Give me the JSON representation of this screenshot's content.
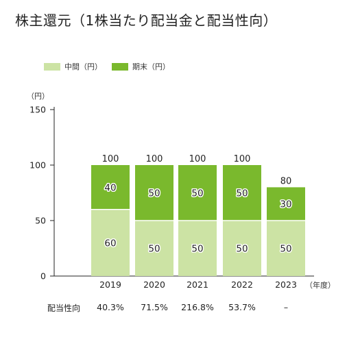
{
  "title": "株主還元（1株当たり配当金と配当性向）",
  "colors": {
    "interim": "#cce3a4",
    "year_end": "#7ab92d",
    "axis": "#222222"
  },
  "chart_data": {
    "type": "bar",
    "stacked": true,
    "categories": [
      "2019",
      "2020",
      "2021",
      "2022",
      "2023"
    ],
    "series": [
      {
        "name": "中間（円）",
        "values": [
          60,
          50,
          50,
          50,
          50
        ]
      },
      {
        "name": "期末（円）",
        "values": [
          40,
          50,
          50,
          50,
          30
        ]
      }
    ],
    "totals": [
      100,
      100,
      100,
      100,
      80
    ],
    "ylabel": "（円）",
    "xlabel": "（年度）",
    "ylim": [
      0,
      150
    ],
    "yticks": [
      0,
      50,
      100,
      150
    ],
    "grid": false,
    "legend_position": "top-left"
  },
  "payout": {
    "label": "配当性向",
    "values": [
      "40.3%",
      "71.5%",
      "216.8%",
      "53.7%",
      "–"
    ]
  }
}
